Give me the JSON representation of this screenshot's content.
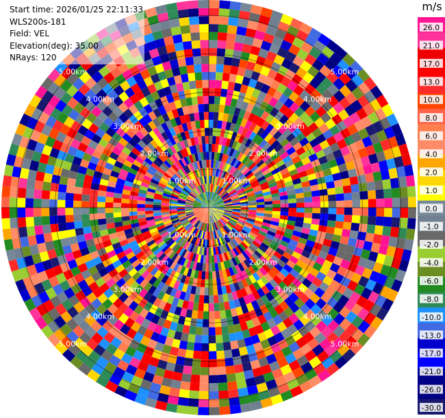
{
  "header": {
    "start_time": "Start time: 2026/01/25 22:11:33",
    "instrument": "WLS200s-181",
    "field": "Field: VEL",
    "elevation": "Elevation(deg): 35.00",
    "nrays": "NRays: 120"
  },
  "chart_data": {
    "type": "heatmap",
    "projection": "polar-ppi",
    "field": "VEL",
    "nrays": 120,
    "range_ring_labels": [
      "1.00km",
      "2.00km",
      "3.00km",
      "4.00km",
      "5.00km"
    ],
    "range_rings_km": [
      1,
      2,
      3,
      4,
      5
    ],
    "max_range_km": 5.4,
    "colorbar": {
      "unit": "m/s",
      "tick_labels": [
        "26.0",
        "21.0",
        "17.0",
        "13.0",
        "10.0",
        "8.0",
        "6.0",
        "4.0",
        "2.0",
        "1.0",
        "0.0",
        "-1.0",
        "-2.0",
        "-4.0",
        "-6.0",
        "-8.0",
        "-10.0",
        "-13.0",
        "-17.0",
        "-21.0",
        "-26.0",
        "-30.0"
      ],
      "colors": [
        "#ff1493",
        "#ff3399",
        "#ee0000",
        "#ff0000",
        "#ff2a2a",
        "#ff4500",
        "#ff6347",
        "#ff7f50",
        "#ff8c69",
        "#ffa500",
        "#ffd700",
        "#ffff00",
        "#778899",
        "#708090",
        "#696969",
        "#9acd32",
        "#6b8e23",
        "#228b22",
        "#2e8b57",
        "#1e90ff",
        "#4169e1",
        "#0000cd",
        "#0000ff",
        "#00008b",
        "#000080",
        "#191970"
      ]
    }
  }
}
